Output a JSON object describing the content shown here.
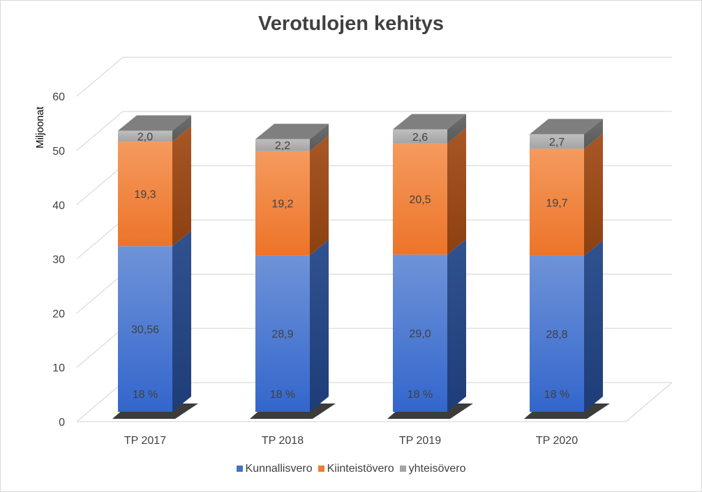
{
  "chart_data": {
    "type": "bar",
    "stacked": true,
    "three_d": true,
    "title": "Verotulojen kehitys",
    "ylabel": "Miljoonat",
    "xlabel": "",
    "ylim": [
      0,
      60
    ],
    "yticks": [
      0,
      10,
      20,
      30,
      40,
      50,
      60
    ],
    "grid": true,
    "legend_position": "bottom",
    "categories": [
      "TP 2017",
      "TP 2018",
      "TP 2019",
      "TP 2020"
    ],
    "series": [
      {
        "name": "Kunnallisvero",
        "color": "#4472c4",
        "values": [
          30.56,
          28.9,
          29.0,
          28.8
        ],
        "labels": [
          "30,56",
          "28,9",
          "29,0",
          "28,8"
        ],
        "rate_labels": [
          "18 %",
          "18 %",
          "18 %",
          "18 %"
        ]
      },
      {
        "name": "Kiinteistövero",
        "color": "#ed7d31",
        "values": [
          19.3,
          19.2,
          20.5,
          19.7
        ],
        "labels": [
          "19,3",
          "19,2",
          "20,5",
          "19,7"
        ]
      },
      {
        "name": "yhteisövero",
        "color": "#a5a5a5",
        "values": [
          2.0,
          2.2,
          2.6,
          2.7
        ],
        "labels": [
          "2,0",
          "2,2",
          "2,6",
          "2,7"
        ]
      }
    ]
  }
}
